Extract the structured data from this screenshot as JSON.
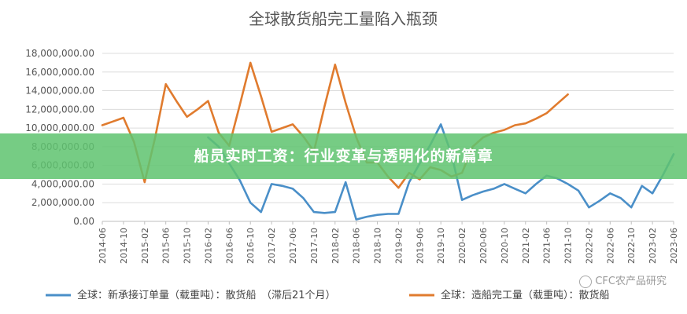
{
  "banner": {
    "title": "船员实时工资：行业变革与透明化的新篇章"
  },
  "watermark": {
    "text": "CFC农产品研究"
  },
  "chart_data": {
    "type": "line",
    "title": "全球散货船完工量陷入瓶颈",
    "xlabel": "",
    "ylabel": "",
    "ylim": [
      0,
      18000000
    ],
    "yticks": [
      0,
      2000000,
      4000000,
      6000000,
      8000000,
      10000000,
      12000000,
      14000000,
      16000000,
      18000000
    ],
    "ytick_labels": [
      "0.00",
      "2,000,000.00",
      "4,000,000.00",
      "6,000,000.00",
      "8,000,000.00",
      "10,000,000.00",
      "12,000,000.00",
      "14,000,000.00",
      "16,000,000.00",
      "18,000,000.00"
    ],
    "categories": [
      "2014-06",
      "2014-10",
      "2015-02",
      "2015-06",
      "2015-10",
      "2016-02",
      "2016-06",
      "2016-10",
      "2017-02",
      "2017-06",
      "2017-10",
      "2018-02",
      "2018-06",
      "2018-10",
      "2019-02",
      "2019-06",
      "2019-10",
      "2020-02",
      "2020-06",
      "2020-10",
      "2021-02",
      "2021-06",
      "2021-10",
      "2022-02",
      "2022-06",
      "2022-10",
      "2023-02",
      "2023-06"
    ],
    "grid": true,
    "legend_position": "bottom",
    "series": [
      {
        "name": "全球：新承接订单量（载重吨）：散货船　（滞后21个月）",
        "color": "#4a8fc8",
        "x": [
          "2016-02",
          "2016-04",
          "2016-06",
          "2016-08",
          "2016-10",
          "2016-12",
          "2017-02",
          "2017-04",
          "2017-06",
          "2017-08",
          "2017-10",
          "2017-12",
          "2018-02",
          "2018-04",
          "2018-06",
          "2018-08",
          "2018-10",
          "2018-12",
          "2019-02",
          "2019-04",
          "2019-06",
          "2019-08",
          "2019-10",
          "2019-12",
          "2020-02",
          "2020-04",
          "2020-06",
          "2020-08",
          "2020-10",
          "2020-12",
          "2021-02",
          "2021-04",
          "2021-06",
          "2021-08",
          "2021-10",
          "2021-12",
          "2022-02",
          "2022-04",
          "2022-06",
          "2022-08",
          "2022-10",
          "2022-12",
          "2023-02",
          "2023-04",
          "2023-06"
        ],
        "values": [
          9000000,
          8000000,
          6200000,
          4400000,
          2000000,
          1000000,
          4000000,
          3800000,
          3500000,
          2500000,
          1000000,
          900000,
          1000000,
          4200000,
          200000,
          500000,
          700000,
          800000,
          800000,
          4200000,
          6200000,
          8200000,
          10400000,
          7200000,
          2300000,
          2800000,
          3200000,
          3500000,
          4000000,
          3500000,
          3000000,
          4000000,
          4900000,
          4600000,
          4000000,
          3300000,
          1500000,
          2200000,
          3000000,
          2500000,
          1500000,
          3800000,
          3000000,
          5000000,
          7200000
        ]
      },
      {
        "name": "全球：造船完工量（载重吨）：散货船",
        "color": "#e07b2e",
        "x": [
          "2014-06",
          "2014-08",
          "2014-10",
          "2014-12",
          "2015-02",
          "2015-04",
          "2015-06",
          "2015-08",
          "2015-10",
          "2015-12",
          "2016-02",
          "2016-04",
          "2016-06",
          "2016-08",
          "2016-10",
          "2016-12",
          "2017-02",
          "2017-04",
          "2017-06",
          "2017-08",
          "2017-10",
          "2017-12",
          "2018-02",
          "2018-04",
          "2018-06",
          "2018-08",
          "2018-10",
          "2018-12",
          "2019-02",
          "2019-04",
          "2019-06",
          "2019-08",
          "2019-10",
          "2019-12",
          "2020-02",
          "2020-04",
          "2020-06",
          "2020-08",
          "2020-10",
          "2020-12",
          "2021-02",
          "2021-04",
          "2021-06",
          "2021-08",
          "2021-10"
        ],
        "values": [
          10300000,
          10700000,
          11100000,
          8500000,
          4200000,
          9000000,
          14700000,
          12900000,
          11200000,
          12000000,
          12900000,
          9500000,
          8100000,
          12500000,
          17000000,
          13400000,
          9600000,
          10000000,
          10400000,
          9100000,
          7500000,
          12300000,
          16800000,
          12700000,
          9000000,
          6300000,
          6300000,
          4800000,
          3600000,
          5200000,
          4500000,
          5800000,
          5500000,
          4800000,
          5200000,
          8000000,
          9000000,
          9500000,
          9800000,
          10300000,
          10500000,
          11000000,
          11600000,
          12600000,
          13600000
        ]
      }
    ]
  }
}
